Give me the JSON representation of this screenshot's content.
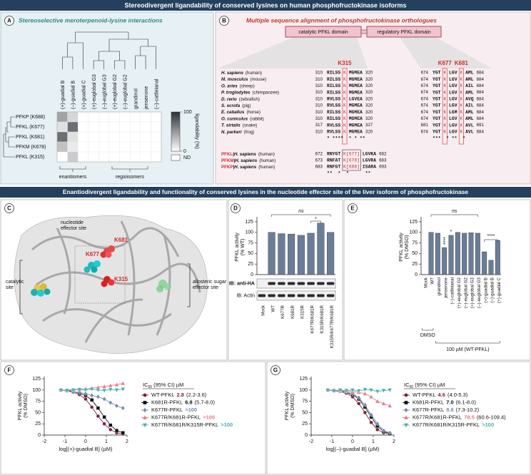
{
  "sections": {
    "banner_top": "Stereodivergent ligandability of conserved lysines on human phosphofructokinase isoforms",
    "banner_bottom": "Enantiodivergent ligandability and functionality of conserved lysines in the nucleotide effector site of the liver isoform of phosphofructokinase",
    "panel_a": {
      "letter": "A",
      "title": "Stereoselective meroterpenoid-lysine interactions"
    },
    "panel_b": {
      "letter": "B",
      "title": "Multiple sequence alignment of phosphofructokinase orthologues",
      "domains": [
        "catalytic PFKL domain",
        "regulatory PFKL domain"
      ],
      "sites": [
        "K315",
        "K677",
        "K681"
      ],
      "rows": [
        {
          "species": "H. sapiens",
          "common": "(human)",
          "start1": 310,
          "seq1": [
            "RILSS",
            "K",
            "MGMEA"
          ],
          "end1": 320,
          "start2": 674,
          "seq2": [
            "YGT",
            "K",
            "LGV",
            "K",
            "AML"
          ],
          "end2": 684
        },
        {
          "species": "M. musculus",
          "common": "(mouse)",
          "start1": 310,
          "seq1": [
            "RILSS",
            "K",
            "MGMEA"
          ],
          "end1": 320,
          "start2": 674,
          "seq2": [
            "YGT",
            "K",
            "LGV",
            "K",
            "AML"
          ],
          "end2": 684
        },
        {
          "species": "O. aries",
          "common": "(sheep)",
          "start1": 310,
          "seq1": [
            "RILSS",
            "K",
            "MGMEA"
          ],
          "end1": 320,
          "start2": 674,
          "seq2": [
            "YGT",
            "K",
            "LGV",
            "K",
            "AIL"
          ],
          "end2": 684
        },
        {
          "species": "P. troglodytes",
          "common": "(chimpanzee)",
          "start1": 310,
          "seq1": [
            "RILSS",
            "K",
            "MGMEA"
          ],
          "end1": 320,
          "start2": 674,
          "seq2": [
            "YGT",
            "K",
            "LGV",
            "K",
            "AML"
          ],
          "end2": 684
        },
        {
          "species": "D. rerio",
          "common": "(zebrafish)",
          "start1": 310,
          "seq1": [
            "RVLSS",
            "K",
            "LGVEA"
          ],
          "end1": 320,
          "start2": 674,
          "seq2": [
            "YGT",
            "K",
            "LGV",
            "K",
            "AVQ"
          ],
          "end2": 684
        },
        {
          "species": "S. scrofa",
          "common": "(pig)",
          "start1": 310,
          "seq1": [
            "RVLSS",
            "K",
            "MGMEA"
          ],
          "end1": 320,
          "start2": 674,
          "seq2": [
            "YGT",
            "K",
            "LGV",
            "K",
            "AIL"
          ],
          "end2": 684
        },
        {
          "species": "E. caballus",
          "common": "(horse)",
          "start1": 310,
          "seq1": [
            "RILSS",
            "K",
            "MGMEA"
          ],
          "end1": 320,
          "start2": 674,
          "seq2": [
            "YGT",
            "K",
            "LGM",
            "K",
            "AML"
          ],
          "end2": 684
        },
        {
          "species": "O. cuniculus",
          "common": "(rabbit)",
          "start1": 310,
          "seq1": [
            "RILSS",
            "K",
            "MGMEA"
          ],
          "end1": 320,
          "start2": 674,
          "seq2": [
            "YGT",
            "K",
            "LGV",
            "K",
            "AML"
          ],
          "end2": 684
        },
        {
          "species": "T. sirtalis",
          "common": "(snake)",
          "start1": 317,
          "seq1": [
            "RVLSS",
            "K",
            "MGMEA"
          ],
          "end1": 327,
          "start2": 681,
          "seq2": [
            "YGT",
            "K",
            "LGV",
            "K",
            "AVL"
          ],
          "end2": 691
        },
        {
          "species": "N. parkeri",
          "common": "(frog)",
          "start1": 310,
          "seq1": [
            "RVLSS",
            "K",
            "MGMEA"
          ],
          "end1": 320,
          "start2": 674,
          "seq2": [
            "YGT",
            "K",
            "LGV",
            "K",
            "AVL"
          ],
          "end2": 684
        }
      ],
      "conservation": [
        "* ****  * * **",
        "***  * **  *"
      ],
      "isoforms": [
        {
          "isoform": "PFKL",
          "species": "|H. sapiens",
          "common": "(human)",
          "start": 672,
          "seq": [
            "RNYGT",
            "K[677]",
            "LGVKA"
          ],
          "end": 682
        },
        {
          "isoform": "PFKM",
          "species": "|H. sapiens",
          "common": "(human)",
          "start": 673,
          "seq": [
            "RNFAT",
            "K[678]",
            "LGVRA"
          ],
          "end": 683
        },
        {
          "isoform": "PFKP",
          "species": "|H. sapiens",
          "common": "(human)",
          "start": 683,
          "seq": [
            "RNFGT",
            "K[688]",
            "ISARA"
          ],
          "end": 693
        }
      ],
      "isoform_conservation": "**  *  *      **"
    },
    "panel_c": {
      "letter": "C",
      "labels": [
        [
          "nucleotide",
          "effector site"
        ],
        [
          "K681"
        ],
        [
          "K677"
        ],
        [
          "K315"
        ],
        [
          "catalytic",
          "site"
        ],
        [
          "allosteric sugar",
          "effector site"
        ]
      ]
    },
    "panel_d": {
      "letter": "D"
    },
    "panel_e": {
      "letter": "E"
    },
    "panel_f": {
      "letter": "F"
    },
    "panel_g": {
      "letter": "G"
    }
  },
  "chart_data": [
    {
      "type": "heatmap",
      "columns": [
        "(+)-guadial B",
        "(–)-guadial B",
        "(+)-guadial C",
        "(+)-euglobal G3",
        "(–)-euglobal G3",
        "(+)-euglobal G2",
        "(–)-euglobal G2",
        "grandinol",
        "jensenone",
        "(–)-cattleianal"
      ],
      "rows": [
        "PFKP (K688)",
        "PFKL (K677)",
        "PFKL (K681)",
        "PFKM (K678)",
        "PFKL (K315)"
      ],
      "values": [
        [
          45,
          20,
          0,
          0,
          0,
          0,
          0,
          0,
          0,
          0
        ],
        [
          15,
          70,
          0,
          0,
          0,
          0,
          0,
          0,
          0,
          0
        ],
        [
          70,
          15,
          0,
          0,
          0,
          0,
          0,
          0,
          0,
          0
        ],
        [
          30,
          10,
          0,
          0,
          0,
          0,
          0,
          0,
          0,
          0
        ],
        [
          0,
          25,
          0,
          0,
          0,
          0,
          0,
          0,
          0,
          0
        ]
      ],
      "zlim": [
        0,
        100
      ],
      "zticks": [
        0,
        100
      ],
      "colors": [
        "#ffffff",
        "#2b3038"
      ],
      "colorbar_label": "ligandability (%)",
      "nd_label": "ND",
      "groups": [
        "enantiomers",
        "regioisomers"
      ]
    },
    {
      "type": "bar",
      "categories": [
        "Mock",
        "WT",
        "K677R",
        "K681R",
        "K315R",
        "K677R/K681R",
        "K315R/K681R",
        "K315R/K677R/K681R"
      ],
      "values": [
        0,
        100,
        97,
        96,
        93,
        98,
        122,
        100
      ],
      "color": "#6a7d98",
      "ylabel": [
        "PFKL activity",
        "(% WT)"
      ],
      "ylim": [
        0,
        130
      ],
      "yticks": [
        0,
        25,
        50,
        75,
        100,
        125
      ],
      "annotations": [
        "ns",
        "*"
      ],
      "blots": [
        "IB: anti-HA",
        "IB: Actin"
      ]
    },
    {
      "type": "bar",
      "categories": [
        "Mock",
        "WT",
        "grandinol",
        "jensenone",
        "(–)-cattleianal",
        "(+)-euglobal G2",
        "(–)-euglobal G2",
        "(+)-euglobal G3",
        "(–)-euglobal G3",
        "(+)-guadial B",
        "(–)-guadial B",
        "(+)-guadial C"
      ],
      "values": [
        0,
        100,
        98,
        64,
        93,
        100,
        98,
        99,
        98,
        54,
        34,
        81
      ],
      "color": "#6a7d98",
      "ylabel": [
        "PFKL activity",
        "(% DMSO)"
      ],
      "ylim": [
        0,
        130
      ],
      "yticks": [
        0,
        25,
        50,
        75,
        100,
        125
      ],
      "annotations": [
        "ns",
        "****",
        "*",
        "****"
      ],
      "groups": [
        "DMSO",
        "100 µM (WT-PFKL)"
      ]
    },
    {
      "type": "line",
      "xlabel": "log[(+)-guadial B] (µM)",
      "ylabel": [
        "PFKL activity",
        "(% DMSO)"
      ],
      "x": [
        -1.2,
        -0.9,
        -0.6,
        -0.3,
        0,
        0.3,
        0.6,
        0.9,
        1.2,
        1.5,
        1.8
      ],
      "xlim": [
        -2,
        2
      ],
      "xticks": [
        -2,
        -1,
        0,
        1,
        2
      ],
      "ylim": [
        0,
        130
      ],
      "yticks": [
        0,
        25,
        50,
        75,
        100,
        125
      ],
      "legend_title": [
        "IC",
        "50",
        " (95% CI) µM"
      ],
      "series": [
        {
          "name": "WT-PFKL",
          "ic50": "2.8",
          "ci": "(2.2-3.6)",
          "color": "#7b1d3f",
          "marker": "circle",
          "values": [
            100,
            98,
            95,
            90,
            80,
            62,
            42,
            25,
            12,
            5,
            2
          ]
        },
        {
          "name": "K681R-PFKL",
          "ic50": "6.8",
          "ci": "(5.7-8.0)",
          "color": "#111111",
          "marker": "square",
          "values": [
            100,
            99,
            97,
            93,
            88,
            78,
            60,
            40,
            22,
            10,
            5
          ]
        },
        {
          "name": "K677R-PFKL",
          "ic50": ">100",
          "ci": "",
          "color": "#6f8db0",
          "marker": "diamond",
          "values": [
            100,
            98,
            96,
            95,
            92,
            88,
            85,
            80,
            72,
            65,
            60
          ]
        },
        {
          "name": "K677R/K681R-PFKL",
          "ic50": ">100",
          "ci": "",
          "color": "#e8798a",
          "marker": "triangle",
          "values": [
            100,
            100,
            101,
            102,
            103,
            104,
            106,
            108,
            110,
            112,
            115
          ]
        },
        {
          "name": "K677R/K681R/K315R-PFKL",
          "ic50": ">100",
          "ci": "",
          "color": "#45b0b0",
          "marker": "triangle-down",
          "values": [
            100,
            99,
            100,
            101,
            100,
            102,
            100,
            99,
            101,
            100,
            102
          ]
        }
      ]
    },
    {
      "type": "line",
      "xlabel": "log[(–)-guadial B] (µM)",
      "ylabel": [
        "PFKL activity",
        "(% DMSO)"
      ],
      "x": [
        -1.2,
        -0.9,
        -0.6,
        -0.3,
        0,
        0.3,
        0.6,
        0.9,
        1.2,
        1.5,
        1.8
      ],
      "xlim": [
        -2,
        2
      ],
      "xticks": [
        -2,
        -1,
        0,
        1,
        2
      ],
      "ylim": [
        0,
        130
      ],
      "yticks": [
        0,
        25,
        50,
        75,
        100,
        125
      ],
      "legend_title": [
        "IC",
        "50",
        " (95% CI) µM"
      ],
      "series": [
        {
          "name": "WT-PFKL",
          "ic50": "4.6",
          "ci": "(4.0-5.3)",
          "color": "#7b1d3f",
          "marker": "circle",
          "values": [
            100,
            99,
            97,
            93,
            85,
            70,
            50,
            28,
            12,
            5,
            2
          ]
        },
        {
          "name": "K681R-PFKL",
          "ic50": "7.0",
          "ci": "(6.1-8.0)",
          "color": "#111111",
          "marker": "square",
          "values": [
            100,
            99,
            98,
            95,
            90,
            80,
            62,
            40,
            20,
            8,
            3
          ]
        },
        {
          "name": "K677R-PFKL",
          "ic50": "8.6",
          "ci": "(7.3-10.2)",
          "color": "#6f8db0",
          "marker": "diamond",
          "values": [
            100,
            100,
            98,
            96,
            92,
            83,
            67,
            45,
            25,
            10,
            5
          ]
        },
        {
          "name": "K677R/K681R-PFKL",
          "ic50": "78.5",
          "ci": "(60.6-109.4)",
          "color": "#e8798a",
          "marker": "triangle",
          "values": [
            100,
            100,
            99,
            98,
            97,
            95,
            92,
            85,
            75,
            70,
            65
          ]
        },
        {
          "name": "K677R/K681R/K315R-PFKL",
          "ic50": ">100",
          "ci": "",
          "color": "#45b0b0",
          "marker": "triangle-down",
          "values": [
            100,
            98,
            100,
            99,
            100,
            98,
            101,
            100,
            97,
            99,
            100
          ]
        }
      ]
    }
  ]
}
